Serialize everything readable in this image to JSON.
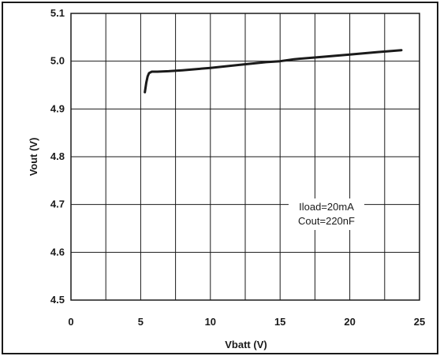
{
  "chart_data": {
    "type": "line",
    "xlabel": "Vbatt (V)",
    "ylabel": "Vout (V)",
    "xlim": [
      0,
      25
    ],
    "ylim": [
      4.5,
      5.1
    ],
    "x_ticks": [
      "0",
      "5",
      "10",
      "15",
      "20",
      "25"
    ],
    "y_ticks": [
      "4.5",
      "4.6",
      "4.7",
      "4.8",
      "4.9",
      "5.0",
      "5.1"
    ],
    "grid": true,
    "annotations": [
      "Iload=20mA",
      "Cout=220nF"
    ],
    "series": [
      {
        "x": [
          5.3,
          5.4,
          5.5,
          5.6,
          5.8,
          6.2,
          7,
          8,
          10,
          12,
          14,
          15,
          16,
          18,
          20,
          22,
          23.7
        ],
        "y": [
          4.935,
          4.955,
          4.968,
          4.975,
          4.978,
          4.978,
          4.979,
          4.981,
          4.986,
          4.992,
          4.998,
          5.0,
          5.004,
          5.009,
          5.014,
          5.019,
          5.023
        ]
      }
    ]
  },
  "colors": {
    "line": "#1a1a1a",
    "grid": "#1a1a1a",
    "background": "#ffffff"
  }
}
